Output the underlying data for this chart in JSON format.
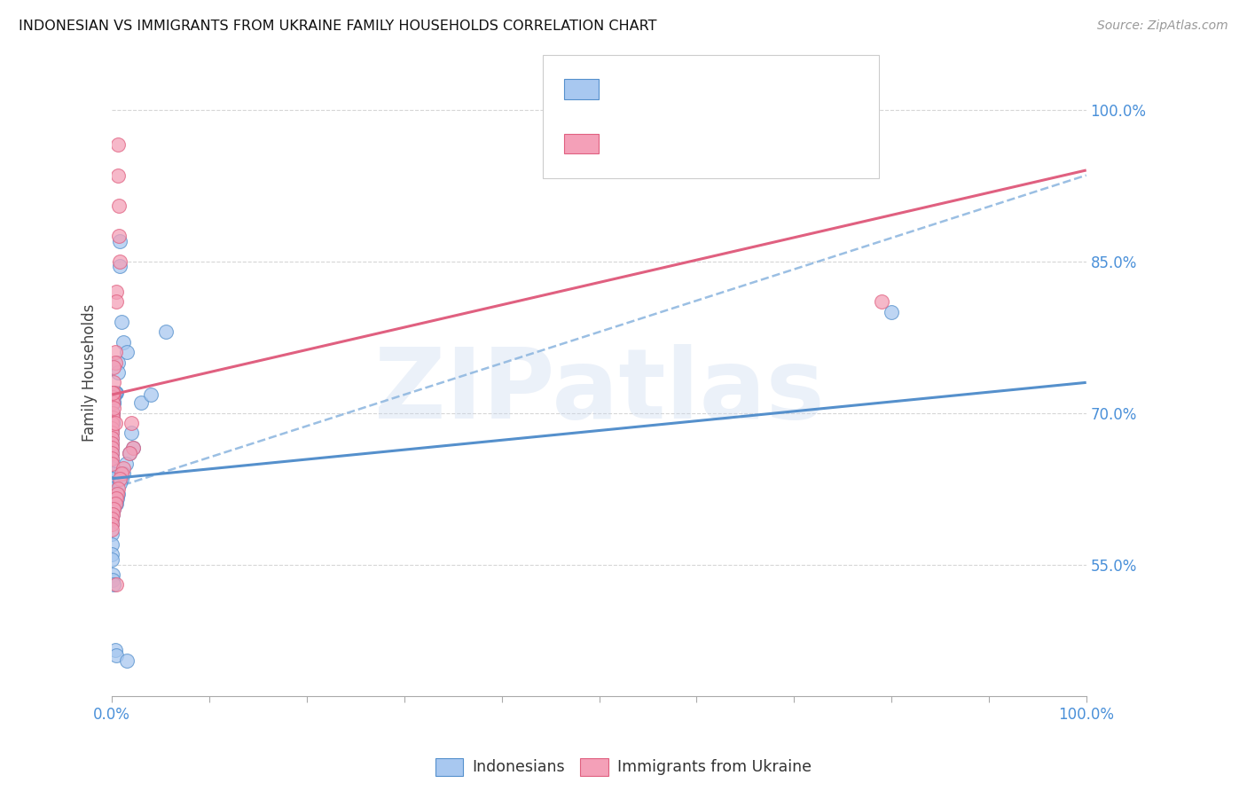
{
  "title": "INDONESIAN VS IMMIGRANTS FROM UKRAINE FAMILY HOUSEHOLDS CORRELATION CHART",
  "source": "Source: ZipAtlas.com",
  "ylabel": "Family Households",
  "watermark": "ZIPatlas",
  "color_blue": "#A8C8F0",
  "color_pink": "#F4A0B8",
  "color_blue_edge": "#5590CC",
  "color_pink_edge": "#E06080",
  "color_line_blue": "#5590CC",
  "color_line_pink": "#E06080",
  "color_line_dashed": "#90B8E0",
  "ytick_labels": [
    "55.0%",
    "70.0%",
    "85.0%",
    "100.0%"
  ],
  "ytick_values": [
    0.55,
    0.7,
    0.85,
    1.0
  ],
  "legend1_label": "Indonesians",
  "legend2_label": "Immigrants from Ukraine",
  "blue_line_x": [
    0.0,
    1.0
  ],
  "blue_line_y": [
    0.635,
    0.73
  ],
  "pink_line_x": [
    0.0,
    1.0
  ],
  "pink_line_y": [
    0.718,
    0.94
  ],
  "dashed_line_x": [
    0.0,
    1.0
  ],
  "dashed_line_y": [
    0.625,
    0.935
  ],
  "xlim": [
    0.0,
    1.0
  ],
  "ylim": [
    0.42,
    1.06
  ],
  "indo_x": [
    0.008,
    0.008,
    0.01,
    0.012,
    0.015,
    0.006,
    0.006,
    0.004,
    0.003,
    0.003,
    0.002,
    0.002,
    0.002,
    0.001,
    0.001,
    0.001,
    0.001,
    0.001,
    0.0,
    0.0,
    0.0,
    0.0,
    0.0,
    0.0,
    0.0,
    0.0,
    0.0,
    0.0,
    0.0,
    0.0,
    0.0,
    0.0,
    0.0,
    0.0,
    0.0,
    0.0,
    0.0,
    0.0,
    0.0,
    0.0,
    0.03,
    0.04,
    0.055,
    0.02,
    0.022,
    0.018,
    0.014,
    0.012,
    0.01,
    0.008,
    0.006,
    0.005,
    0.004,
    0.003,
    0.002,
    0.001,
    0.0,
    0.0,
    0.0,
    0.0,
    0.001,
    0.001,
    0.002,
    0.003,
    0.004,
    0.8,
    0.015
  ],
  "indo_y": [
    0.87,
    0.845,
    0.79,
    0.77,
    0.76,
    0.75,
    0.74,
    0.72,
    0.72,
    0.72,
    0.715,
    0.71,
    0.71,
    0.7,
    0.7,
    0.695,
    0.69,
    0.69,
    0.685,
    0.68,
    0.675,
    0.67,
    0.665,
    0.66,
    0.66,
    0.655,
    0.65,
    0.645,
    0.64,
    0.64,
    0.635,
    0.63,
    0.625,
    0.62,
    0.615,
    0.61,
    0.605,
    0.6,
    0.595,
    0.59,
    0.71,
    0.718,
    0.78,
    0.68,
    0.665,
    0.66,
    0.65,
    0.64,
    0.635,
    0.63,
    0.62,
    0.615,
    0.61,
    0.61,
    0.605,
    0.6,
    0.58,
    0.57,
    0.56,
    0.555,
    0.54,
    0.535,
    0.53,
    0.465,
    0.46,
    0.8,
    0.455
  ],
  "ukr_x": [
    0.006,
    0.006,
    0.007,
    0.007,
    0.008,
    0.004,
    0.004,
    0.003,
    0.003,
    0.002,
    0.002,
    0.002,
    0.001,
    0.001,
    0.001,
    0.001,
    0.0,
    0.0,
    0.0,
    0.0,
    0.0,
    0.0,
    0.0,
    0.0,
    0.0,
    0.02,
    0.022,
    0.018,
    0.012,
    0.01,
    0.008,
    0.006,
    0.005,
    0.004,
    0.003,
    0.002,
    0.001,
    0.0,
    0.0,
    0.0,
    0.79,
    0.001,
    0.002,
    0.003,
    0.004
  ],
  "ukr_y": [
    0.965,
    0.935,
    0.905,
    0.875,
    0.85,
    0.82,
    0.81,
    0.76,
    0.75,
    0.745,
    0.73,
    0.72,
    0.715,
    0.71,
    0.7,
    0.695,
    0.69,
    0.685,
    0.68,
    0.675,
    0.67,
    0.665,
    0.66,
    0.655,
    0.65,
    0.69,
    0.665,
    0.66,
    0.645,
    0.64,
    0.635,
    0.625,
    0.62,
    0.615,
    0.61,
    0.605,
    0.6,
    0.595,
    0.59,
    0.585,
    0.81,
    0.72,
    0.705,
    0.69,
    0.53
  ]
}
